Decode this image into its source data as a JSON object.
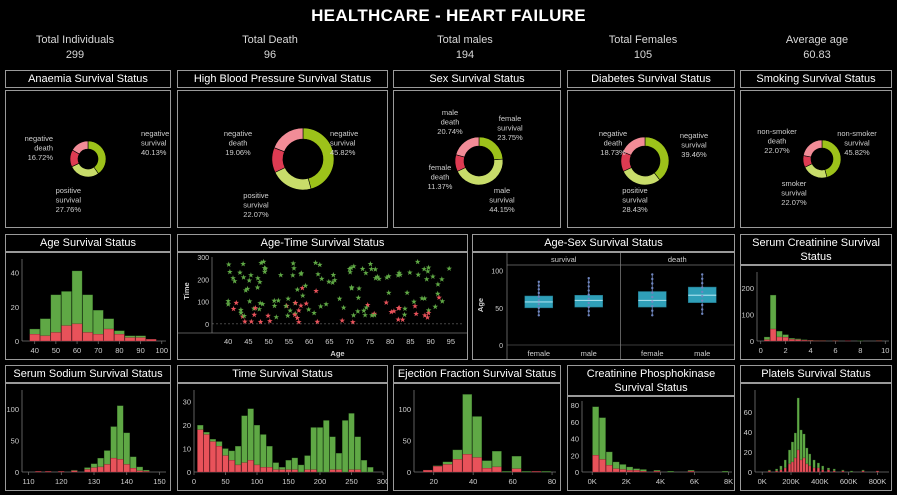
{
  "title": "HEALTHCARE - HEART FAILURE",
  "kpis": [
    {
      "label": "Total Individuals",
      "value": "299"
    },
    {
      "label": "Total Death",
      "value": "96"
    },
    {
      "label": "Total males",
      "value": "194"
    },
    {
      "label": "Total Females",
      "value": "105"
    },
    {
      "label": "Average age",
      "value": "60.83"
    }
  ],
  "colors": {
    "survival": "#5fa845",
    "death": "#e8525a",
    "donut_light_green": "#c8dc6a",
    "donut_dark_green": "#9dc21a",
    "donut_pink": "#f28c97",
    "donut_red": "#dd3b52",
    "box": "#2f9fb8",
    "points": "#5d6f9a"
  },
  "panels": {
    "anaemia": "Anaemia Survival Status",
    "hbp": "High Blood Pressure Survival Status",
    "sex": "Sex Survival Status",
    "diabetes": "Diabetes Survival Status",
    "smoking": "Smoking Survival Status",
    "age": "Age Survival Status",
    "age_time": "Age-Time  Survival Status",
    "age_sex": "Age-Sex  Survival Status",
    "creatinine": "Serum Creatinine Survival Status",
    "sodium": "Serum Sodium Survival Status",
    "time": "Time  Survival Status",
    "ejection": "Ejection Fraction Survival Status",
    "cpk": "Creatinine Phosphokinase Survival Status",
    "platelets": "Platels Survival Status"
  },
  "chart_data": [
    {
      "id": "anaemia",
      "type": "pie",
      "slices": [
        {
          "label": "negative survival",
          "value": 40.13,
          "text": "40.13%"
        },
        {
          "label": "positive survival",
          "value": 27.76,
          "text": "27.76%"
        },
        {
          "label": "positive death",
          "value": 15.39,
          "text": ""
        },
        {
          "label": "negative death",
          "value": 16.72,
          "text": "16.72%"
        }
      ]
    },
    {
      "id": "hbp",
      "type": "pie",
      "slices": [
        {
          "label": "negative survival",
          "value": 45.82,
          "text": "45.82%"
        },
        {
          "label": "positive survival",
          "value": 22.07,
          "text": "22.07%"
        },
        {
          "label": "positive death",
          "value": 13.05,
          "text": ""
        },
        {
          "label": "negative death",
          "value": 19.06,
          "text": "19.06%"
        }
      ]
    },
    {
      "id": "sex",
      "type": "pie",
      "slices": [
        {
          "label": "female survival",
          "value": 23.75,
          "text": "23.75%"
        },
        {
          "label": "male survival",
          "value": 44.15,
          "text": "44.15%"
        },
        {
          "label": "female death",
          "value": 11.37,
          "text": "11.37%"
        },
        {
          "label": "male death",
          "value": 20.74,
          "text": "20.74%"
        }
      ]
    },
    {
      "id": "diabetes",
      "type": "pie",
      "slices": [
        {
          "label": "negative survival",
          "value": 39.46,
          "text": "39.46%"
        },
        {
          "label": "positive survival",
          "value": 28.43,
          "text": "28.43%"
        },
        {
          "label": "positive death",
          "value": 13.38,
          "text": ""
        },
        {
          "label": "negative death",
          "value": 18.73,
          "text": "18.73%"
        }
      ]
    },
    {
      "id": "smoking",
      "type": "pie",
      "slices": [
        {
          "label": "non-smoker survival",
          "value": 45.82,
          "text": "45.82%"
        },
        {
          "label": "smoker survival",
          "value": 22.07,
          "text": "22.07%"
        },
        {
          "label": "smoker death",
          "value": 10.04,
          "text": ""
        },
        {
          "label": "non-smoker death",
          "value": 22.07,
          "text": "22.07%"
        }
      ]
    },
    {
      "id": "age",
      "type": "bar",
      "stacked": true,
      "x": [
        40,
        45,
        50,
        55,
        60,
        65,
        70,
        75,
        80,
        85,
        90,
        95
      ],
      "xticks": [
        40,
        50,
        60,
        70,
        80,
        90,
        100
      ],
      "yticks": [
        0,
        20,
        40
      ],
      "ylim": [
        0,
        48
      ],
      "xlim": [
        34,
        102
      ],
      "binwidth": 5,
      "series": [
        {
          "name": "survival",
          "values": [
            3,
            10,
            22,
            20,
            31,
            22,
            14,
            6,
            2,
            1,
            1,
            0
          ]
        },
        {
          "name": "death",
          "values": [
            4,
            3,
            5,
            9,
            10,
            5,
            4,
            7,
            4,
            2,
            2,
            1
          ]
        }
      ]
    },
    {
      "id": "time",
      "type": "bar",
      "stacked": true,
      "x": [
        10,
        20,
        30,
        40,
        50,
        60,
        70,
        80,
        90,
        100,
        110,
        120,
        130,
        140,
        150,
        160,
        170,
        180,
        190,
        200,
        210,
        220,
        230,
        240,
        250,
        260,
        270,
        280
      ],
      "xticks": [
        0,
        50,
        100,
        150,
        200,
        250,
        300
      ],
      "yticks": [
        0,
        10,
        20,
        30
      ],
      "ylim": [
        0,
        35
      ],
      "xlim": [
        0,
        300
      ],
      "binwidth": 10,
      "series": [
        {
          "name": "survival",
          "values": [
            2,
            1,
            1,
            2,
            3,
            4,
            8,
            20,
            22,
            17,
            14,
            9,
            3,
            1,
            4,
            5,
            3,
            6,
            18,
            19,
            22,
            14,
            7,
            22,
            24,
            14,
            5,
            2
          ]
        },
        {
          "name": "death",
          "values": [
            18,
            16,
            13,
            11,
            7,
            5,
            3,
            4,
            5,
            3,
            2,
            2,
            1,
            1,
            1,
            1,
            0,
            1,
            1,
            0,
            0,
            1,
            1,
            0,
            1,
            1,
            0,
            0
          ]
        }
      ]
    },
    {
      "id": "sodium",
      "type": "bar",
      "stacked": true,
      "x": [
        113,
        116,
        120,
        124,
        128,
        130,
        132,
        134,
        136,
        138,
        140,
        142,
        144,
        146,
        148
      ],
      "xticks": [
        110,
        120,
        130,
        140,
        150
      ],
      "yticks": [
        0,
        50,
        100
      ],
      "ylim": [
        0,
        130
      ],
      "xlim": [
        108,
        152
      ],
      "binwidth": 2,
      "series": [
        {
          "name": "survival",
          "values": [
            0,
            0,
            0,
            1,
            3,
            6,
            14,
            22,
            50,
            85,
            50,
            18,
            6,
            2,
            0
          ]
        },
        {
          "name": "death",
          "values": [
            1,
            1,
            1,
            2,
            4,
            7,
            8,
            12,
            22,
            20,
            12,
            6,
            2,
            1,
            0
          ]
        }
      ]
    },
    {
      "id": "ejection",
      "type": "bar",
      "stacked": true,
      "x": [
        17,
        22,
        27,
        32,
        37,
        42,
        47,
        52,
        57,
        62,
        67,
        72,
        77
      ],
      "xticks": [
        20,
        40,
        60,
        80
      ],
      "yticks": [
        0,
        50,
        100
      ],
      "ylim": [
        0,
        130
      ],
      "xlim": [
        10,
        82
      ],
      "binwidth": 5,
      "series": [
        {
          "name": "survival",
          "values": [
            0,
            1,
            4,
            15,
            95,
            65,
            12,
            25,
            1,
            20,
            1,
            0,
            1
          ]
        },
        {
          "name": "death",
          "values": [
            3,
            9,
            12,
            20,
            28,
            23,
            6,
            8,
            0,
            5,
            0,
            1,
            0
          ]
        }
      ]
    },
    {
      "id": "creatinine",
      "type": "bar",
      "stacked": true,
      "x": [
        0.5,
        1,
        1.5,
        2,
        2.5,
        3,
        3.5,
        4,
        4.5,
        5,
        6,
        7,
        8,
        9.5
      ],
      "xticks": [
        0,
        2,
        4,
        6,
        8,
        10
      ],
      "yticks": [
        0,
        100,
        200
      ],
      "ylim": [
        0,
        260
      ],
      "xlim": [
        -0.3,
        10.3
      ],
      "binwidth": 0.5,
      "series": [
        {
          "name": "survival",
          "values": [
            10,
            128,
            22,
            10,
            4,
            3,
            2,
            1,
            1,
            1,
            1,
            0,
            1,
            1
          ]
        },
        {
          "name": "death",
          "values": [
            5,
            45,
            15,
            14,
            6,
            5,
            3,
            2,
            1,
            1,
            1,
            1,
            0,
            1
          ]
        }
      ]
    },
    {
      "id": "cpk",
      "type": "bar",
      "stacked": true,
      "x": [
        200,
        600,
        1000,
        1400,
        1800,
        2200,
        2600,
        3000,
        3800,
        4600,
        5800,
        7800
      ],
      "xticks": [
        0,
        2000,
        4000,
        6000,
        8000
      ],
      "xticklabels": [
        "0K",
        "2K",
        "4K",
        "6K",
        "8K"
      ],
      "yticks": [
        0,
        20,
        40,
        60,
        80
      ],
      "ylim": [
        0,
        85
      ],
      "xlim": [
        -600,
        8200
      ],
      "binwidth": 400,
      "series": [
        {
          "name": "survival",
          "values": [
            58,
            50,
            16,
            8,
            6,
            4,
            2,
            2,
            1,
            1,
            1,
            1
          ]
        },
        {
          "name": "death",
          "values": [
            20,
            15,
            8,
            4,
            3,
            2,
            2,
            1,
            1,
            0,
            1,
            0
          ]
        }
      ]
    },
    {
      "id": "platelets",
      "type": "bar",
      "stacked": true,
      "x": [
        50000,
        100000,
        130000,
        160000,
        190000,
        210000,
        230000,
        250000,
        270000,
        290000,
        310000,
        330000,
        360000,
        390000,
        420000,
        460000,
        500000,
        560000,
        620000,
        700000,
        800000
      ],
      "xticks": [
        0,
        200000,
        400000,
        600000,
        800000
      ],
      "xticklabels": [
        "0K",
        "200K",
        "400K",
        "600K",
        "800K"
      ],
      "yticks": [
        0,
        20,
        40,
        60
      ],
      "ylim": [
        0,
        82
      ],
      "xlim": [
        -50000,
        880000
      ],
      "binwidth": 20000,
      "series": [
        {
          "name": "survival",
          "values": [
            1,
            2,
            4,
            8,
            14,
            20,
            25,
            52,
            30,
            24,
            16,
            12,
            8,
            5,
            4,
            2,
            2,
            1,
            1,
            1,
            0
          ]
        },
        {
          "name": "death",
          "values": [
            1,
            1,
            2,
            4,
            8,
            10,
            14,
            22,
            12,
            14,
            8,
            6,
            4,
            4,
            2,
            2,
            1,
            1,
            0,
            1,
            1
          ]
        }
      ]
    },
    {
      "id": "age_time",
      "type": "scatter",
      "xlabel": "Age",
      "ylabel": "Time",
      "xticks": [
        40,
        45,
        50,
        55,
        60,
        65,
        70,
        75,
        80,
        85,
        90,
        95
      ],
      "yticks": [
        0,
        100,
        200,
        300
      ],
      "xlim": [
        36,
        98
      ],
      "ylim": [
        -5,
        300
      ]
    },
    {
      "id": "age_sex",
      "type": "box",
      "ylabel": "Age",
      "yticks": [
        0,
        50,
        100
      ],
      "ylim": [
        0,
        105
      ],
      "columns": [
        "survival",
        "death"
      ],
      "categories": [
        "female",
        "male"
      ],
      "boxes": [
        {
          "group": "survival",
          "category": "female",
          "min": 40,
          "q1": 50,
          "median": 58,
          "q3": 66,
          "max": 85
        },
        {
          "group": "survival",
          "category": "male",
          "min": 40,
          "q1": 51,
          "median": 60,
          "q3": 67,
          "max": 90
        },
        {
          "group": "death",
          "category": "female",
          "min": 40,
          "q1": 51,
          "median": 60,
          "q3": 72,
          "max": 95
        },
        {
          "group": "death",
          "category": "male",
          "min": 42,
          "q1": 57,
          "median": 67,
          "q3": 78,
          "max": 95
        }
      ]
    }
  ]
}
